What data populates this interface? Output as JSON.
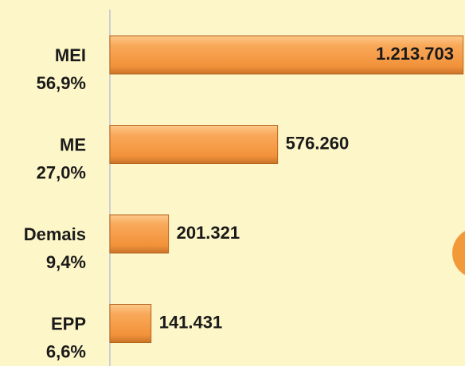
{
  "chart_data": {
    "type": "barh",
    "categories": [
      "MEI",
      "ME",
      "Demais",
      "EPP"
    ],
    "shares": [
      "56,9%",
      "27,0%",
      "9,4%",
      "6,6%"
    ],
    "values": [
      1213703,
      576260,
      201321,
      141431
    ],
    "value_labels": [
      "1.213.703",
      "576.260",
      "201.321",
      "141.431"
    ],
    "color": "#f7a04c",
    "xlim": [
      0,
      1220000
    ]
  }
}
